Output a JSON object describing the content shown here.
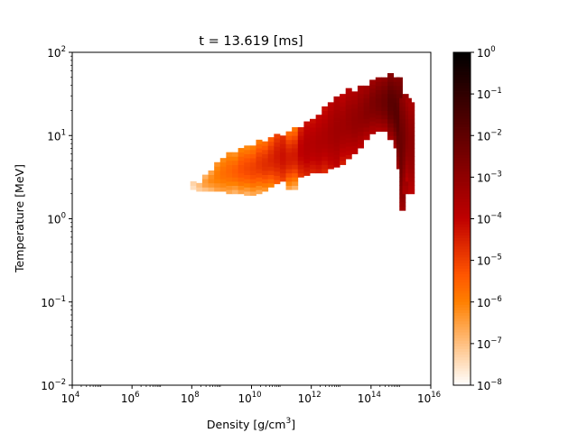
{
  "chart_data": {
    "type": "heatmap",
    "title": "t = 13.619 [ms]",
    "xlabel": "Density [g/cm",
    "xlabel_sup": "3",
    "xlabel_close": "]",
    "ylabel": "Temperature [MeV]",
    "x_scale": "log",
    "y_scale": "log",
    "xlim": [
      10000,
      10000000000000000
    ],
    "ylim": [
      0.01,
      100
    ],
    "x_ticks": [
      {
        "exp": 4,
        "base": "10",
        "sup": "4"
      },
      {
        "exp": 6,
        "base": "10",
        "sup": "6"
      },
      {
        "exp": 8,
        "base": "10",
        "sup": "8"
      },
      {
        "exp": 10,
        "base": "10",
        "sup": "10"
      },
      {
        "exp": 12,
        "base": "10",
        "sup": "12"
      },
      {
        "exp": 14,
        "base": "10",
        "sup": "14"
      },
      {
        "exp": 16,
        "base": "10",
        "sup": "16"
      }
    ],
    "y_ticks": [
      {
        "exp": -2,
        "base": "10",
        "sup": "−2"
      },
      {
        "exp": -1,
        "base": "10",
        "sup": "−1"
      },
      {
        "exp": 0,
        "base": "10",
        "sup": "0"
      },
      {
        "exp": 1,
        "base": "10",
        "sup": "1"
      },
      {
        "exp": 2,
        "base": "10",
        "sup": "2"
      }
    ],
    "colorbar": {
      "scale": "log",
      "range": [
        1e-08,
        1
      ],
      "colormap": "gist_heat_r",
      "ticks": [
        {
          "exp": 0,
          "base": "10",
          "sup": "0"
        },
        {
          "exp": -1,
          "base": "10",
          "sup": "−1"
        },
        {
          "exp": -2,
          "base": "10",
          "sup": "−2"
        },
        {
          "exp": -3,
          "base": "10",
          "sup": "−3"
        },
        {
          "exp": -4,
          "base": "10",
          "sup": "−4"
        },
        {
          "exp": -5,
          "base": "10",
          "sup": "−5"
        },
        {
          "exp": -6,
          "base": "10",
          "sup": "−6"
        },
        {
          "exp": -7,
          "base": "10",
          "sup": "−7"
        },
        {
          "exp": -8,
          "base": "10",
          "sup": "−8"
        }
      ]
    },
    "grid": false,
    "cell_size_log10": {
      "x": 0.1,
      "y": 0.05
    },
    "cells_note_columns": "each column: [log10 density, log10 T min, log10 T max, log10 value low end, log10 value high end]",
    "columns": [
      [
        8.05,
        0.35,
        0.43,
        -7.5,
        -7.0
      ],
      [
        8.25,
        0.33,
        0.45,
        -7.2,
        -6.6
      ],
      [
        8.45,
        0.33,
        0.55,
        -7.0,
        -6.3
      ],
      [
        8.65,
        0.33,
        0.6,
        -6.8,
        -6.0
      ],
      [
        8.85,
        0.33,
        0.68,
        -6.5,
        -5.8
      ],
      [
        9.05,
        0.33,
        0.72,
        -6.4,
        -5.6
      ],
      [
        9.25,
        0.3,
        0.78,
        -6.6,
        -5.4
      ],
      [
        9.45,
        0.3,
        0.8,
        -6.8,
        -5.2
      ],
      [
        9.65,
        0.3,
        0.85,
        -6.5,
        -5.0
      ],
      [
        9.85,
        0.28,
        0.88,
        -6.8,
        -4.8
      ],
      [
        10.05,
        0.28,
        0.9,
        -6.6,
        -4.7
      ],
      [
        10.25,
        0.3,
        0.95,
        -6.6,
        -4.5
      ],
      [
        10.45,
        0.33,
        0.95,
        -6.3,
        -4.4
      ],
      [
        10.65,
        0.38,
        0.98,
        -6.0,
        -4.3
      ],
      [
        10.85,
        0.42,
        1.0,
        -5.4,
        -4.2
      ],
      [
        11.05,
        0.45,
        1.02,
        -5.0,
        -4.1
      ],
      [
        11.25,
        0.35,
        1.05,
        -6.5,
        -4.0
      ],
      [
        11.45,
        0.35,
        1.08,
        -6.8,
        -3.9
      ],
      [
        11.65,
        0.5,
        1.12,
        -4.8,
        -3.8
      ],
      [
        11.85,
        0.52,
        1.18,
        -4.5,
        -3.6
      ],
      [
        12.05,
        0.55,
        1.2,
        -4.5,
        -3.6
      ],
      [
        12.25,
        0.55,
        1.25,
        -4.4,
        -3.5
      ],
      [
        12.45,
        0.55,
        1.35,
        -4.6,
        -3.4
      ],
      [
        12.65,
        0.6,
        1.4,
        -4.2,
        -3.3
      ],
      [
        12.85,
        0.62,
        1.45,
        -4.0,
        -3.2
      ],
      [
        13.05,
        0.65,
        1.5,
        -4.4,
        -3.1
      ],
      [
        13.25,
        0.72,
        1.55,
        -4.2,
        -3.0
      ],
      [
        13.45,
        0.78,
        1.55,
        -4.0,
        -2.9
      ],
      [
        13.65,
        0.85,
        1.58,
        -3.9,
        -2.8
      ],
      [
        13.85,
        0.95,
        1.6,
        -3.8,
        -2.6
      ],
      [
        14.05,
        1.02,
        1.65,
        -3.7,
        -2.4
      ],
      [
        14.25,
        1.05,
        1.68,
        -3.6,
        -2.2
      ],
      [
        14.45,
        1.05,
        1.72,
        -3.5,
        -2.0
      ],
      [
        14.65,
        0.95,
        1.75,
        -3.4,
        -1.6
      ],
      [
        14.85,
        0.85,
        1.72,
        -3.4,
        -1.5
      ],
      [
        14.95,
        0.6,
        1.68,
        -3.3,
        -1.6
      ],
      [
        15.05,
        0.1,
        1.45,
        -3.3,
        -2.0
      ],
      [
        15.15,
        0.3,
        1.52,
        -3.6,
        -2.2
      ],
      [
        15.25,
        0.45,
        1.45,
        -3.8,
        -2.6
      ],
      [
        15.35,
        0.3,
        1.4,
        -3.9,
        -2.8
      ]
    ]
  }
}
